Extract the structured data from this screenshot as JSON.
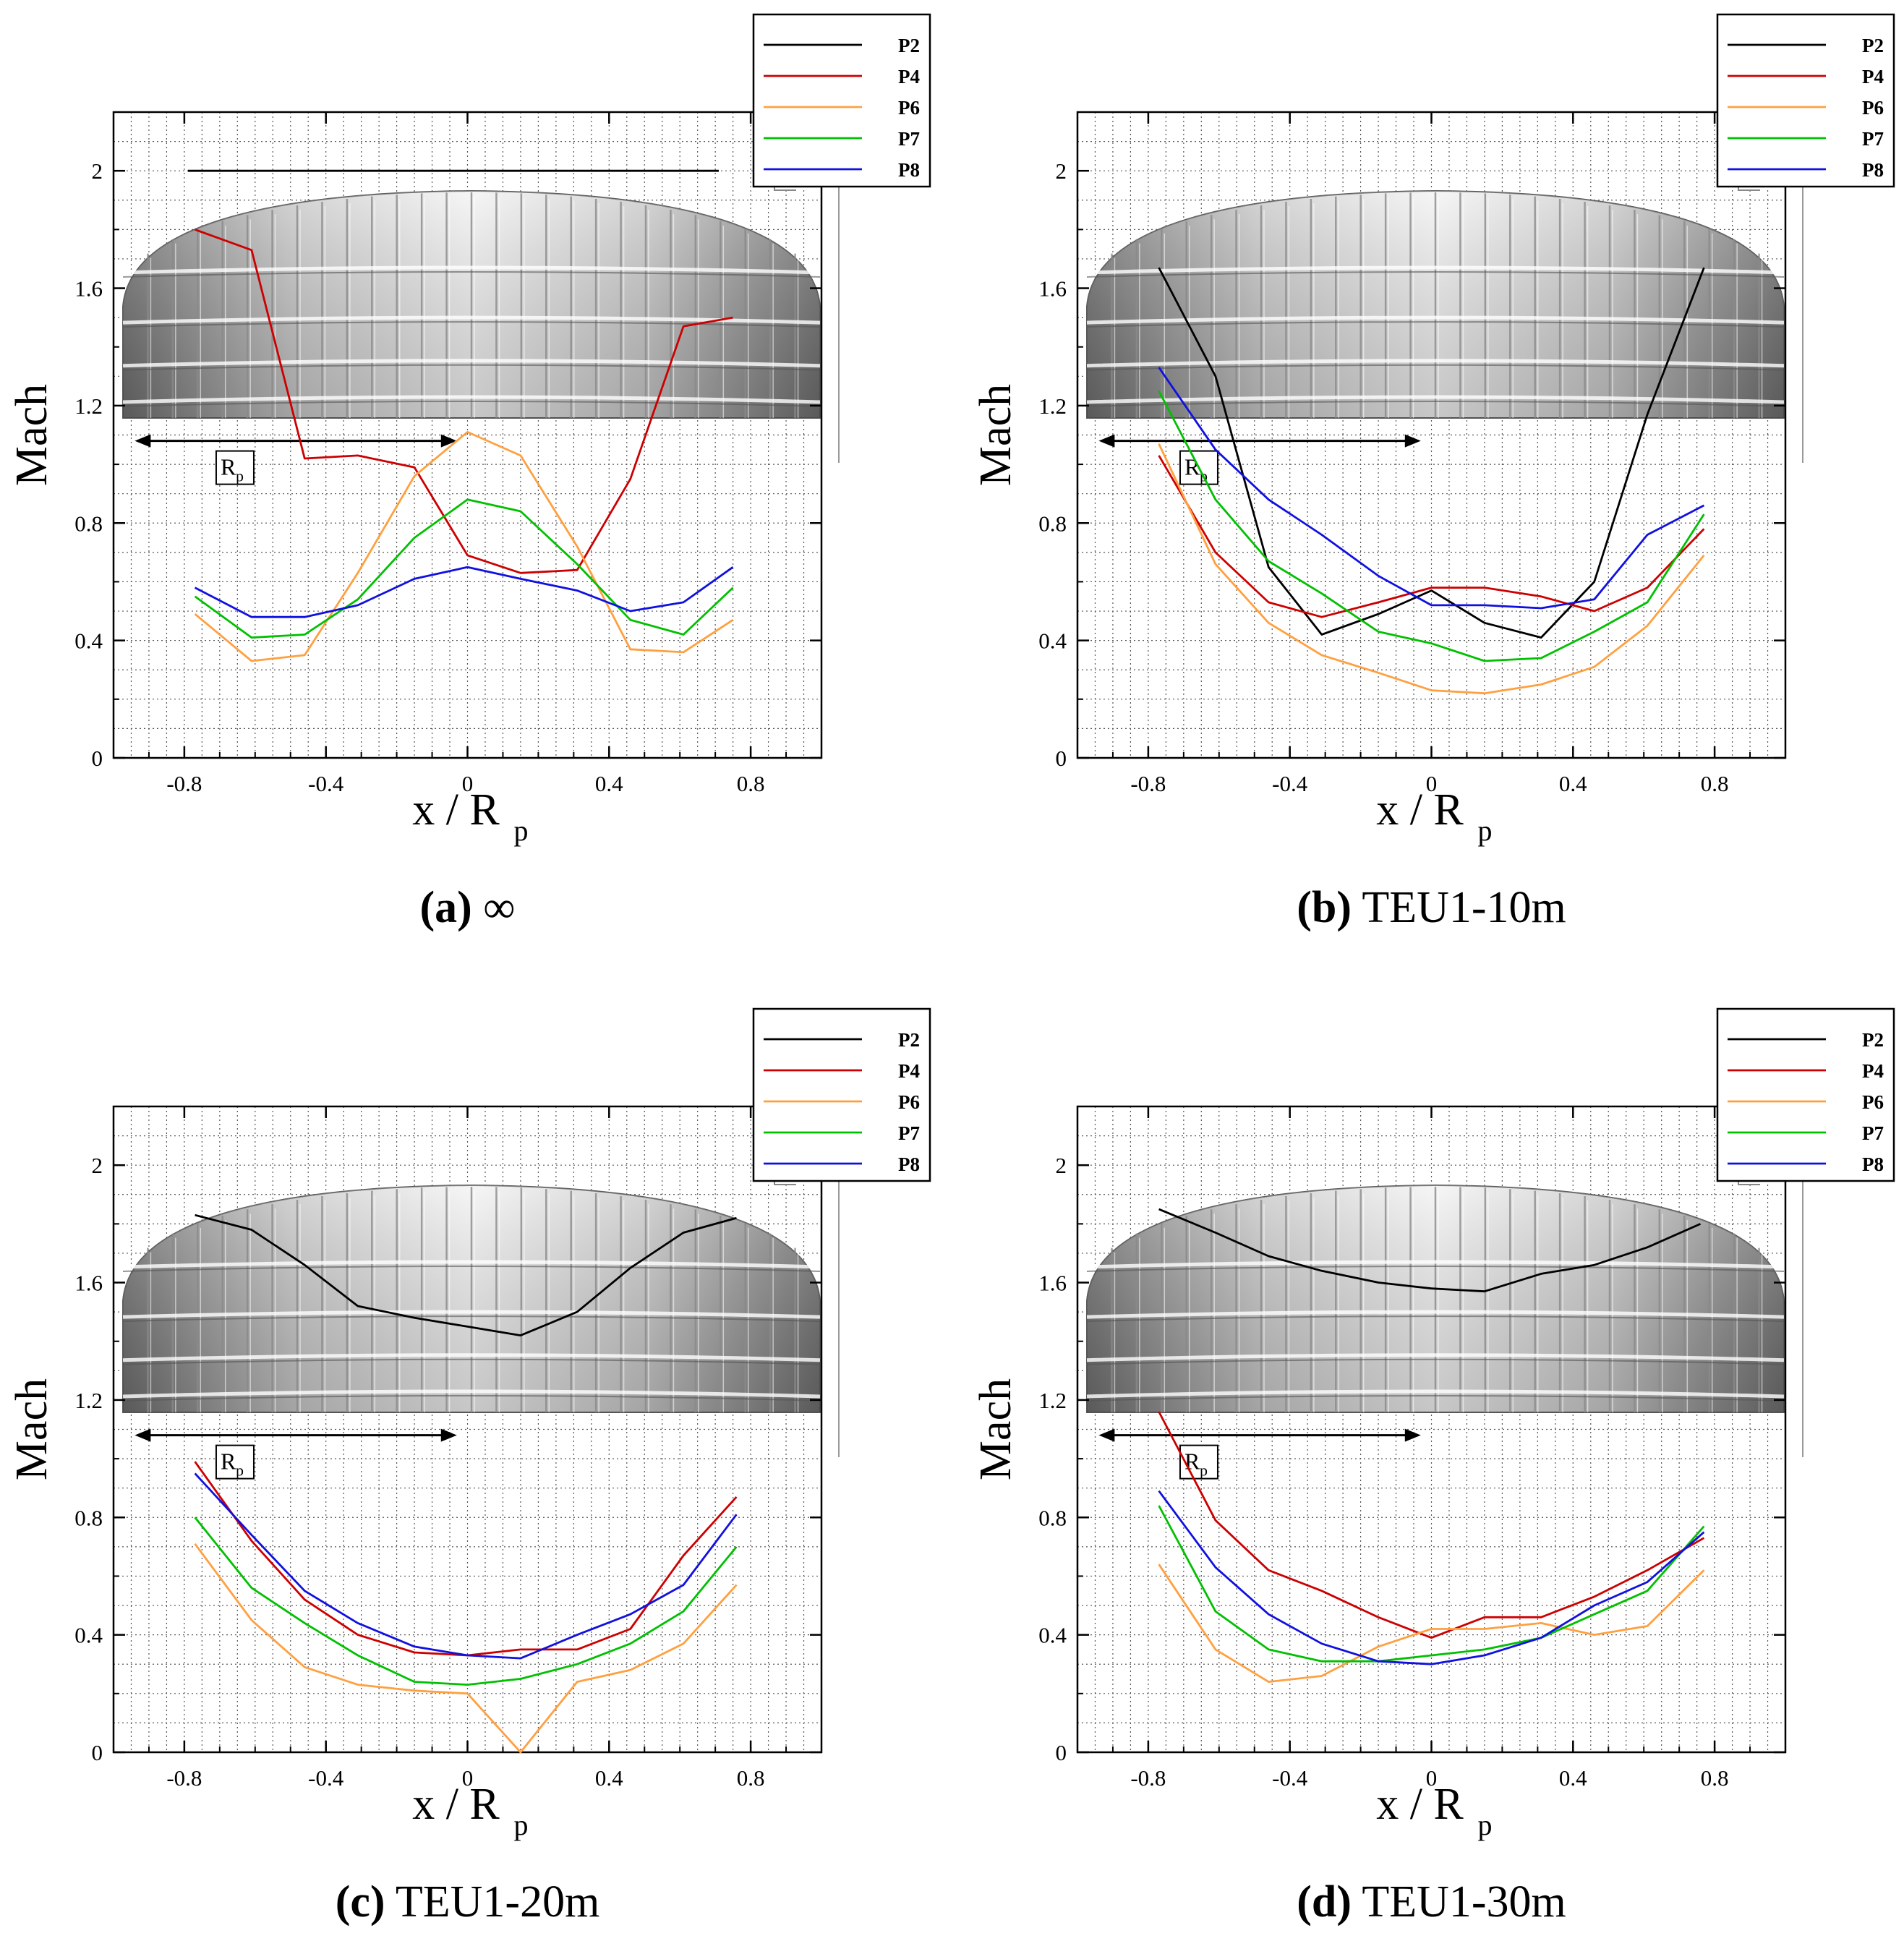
{
  "figure": {
    "panels": [
      {
        "letter": "(a)",
        "caption": "∞"
      },
      {
        "letter": "(b)",
        "caption": "TEU1-10m"
      },
      {
        "letter": "(c)",
        "caption": "TEU1-20m"
      },
      {
        "letter": "(d)",
        "caption": "TEU1-30m"
      }
    ],
    "scale_label": "R",
    "scale_label_sub": "p"
  },
  "colors": {
    "P2": "#000000",
    "P4": "#cc0000",
    "P6": "#ffa040",
    "P7": "#00c000",
    "P8": "#1010e0",
    "grid": "#555555",
    "canopy_light": "#f4f4f4",
    "canopy_dark": "#7a7a7a"
  },
  "chart_data": [
    {
      "type": "line",
      "title": "(a) ∞",
      "xlabel": "x / R",
      "xlabel_sub": "p",
      "ylabel": "Mach",
      "xlim": [
        -1.0,
        1.0
      ],
      "ylim": [
        0,
        2.2
      ],
      "xticks": [
        -0.8,
        -0.4,
        0,
        0.4,
        0.8
      ],
      "xtick_labels": [
        "-0.8",
        "-0.4",
        "0",
        "0.4",
        "0.8"
      ],
      "yticks": [
        0,
        0.4,
        0.8,
        1.2,
        1.6,
        2
      ],
      "ytick_labels": [
        "0",
        "0.4",
        "0.8",
        "1.2",
        "1.6",
        "2"
      ],
      "grid": true,
      "legend_position": "top-right",
      "series": [
        {
          "name": "P2",
          "x": [
            -0.79,
            0.71
          ],
          "y": [
            2.0,
            2.0
          ]
        },
        {
          "name": "P4",
          "x": [
            -0.77,
            -0.61,
            -0.46,
            -0.31,
            -0.15,
            0.0,
            0.15,
            0.31,
            0.46,
            0.61,
            0.75
          ],
          "y": [
            1.8,
            1.73,
            1.02,
            1.03,
            0.99,
            0.69,
            0.63,
            0.64,
            0.95,
            1.47,
            1.5
          ]
        },
        {
          "name": "P6",
          "x": [
            -0.77,
            -0.61,
            -0.46,
            -0.31,
            -0.15,
            0.0,
            0.15,
            0.31,
            0.46,
            0.61,
            0.75
          ],
          "y": [
            0.49,
            0.33,
            0.35,
            0.63,
            0.96,
            1.11,
            1.03,
            0.72,
            0.37,
            0.36,
            0.47
          ]
        },
        {
          "name": "P7",
          "x": [
            -0.77,
            -0.61,
            -0.46,
            -0.31,
            -0.15,
            0.0,
            0.15,
            0.31,
            0.46,
            0.61,
            0.75
          ],
          "y": [
            0.55,
            0.41,
            0.42,
            0.54,
            0.75,
            0.88,
            0.84,
            0.66,
            0.47,
            0.42,
            0.58
          ]
        },
        {
          "name": "P8",
          "x": [
            -0.77,
            -0.61,
            -0.46,
            -0.31,
            -0.15,
            0.0,
            0.15,
            0.31,
            0.46,
            0.61,
            0.75
          ],
          "y": [
            0.58,
            0.48,
            0.48,
            0.52,
            0.61,
            0.65,
            0.61,
            0.57,
            0.5,
            0.53,
            0.65
          ]
        }
      ]
    },
    {
      "type": "line",
      "title": "(b) TEU1-10m",
      "xlabel": "x / R",
      "xlabel_sub": "p",
      "ylabel": "Mach",
      "xlim": [
        -1.0,
        1.0
      ],
      "ylim": [
        0,
        2.2
      ],
      "xticks": [
        -0.8,
        -0.4,
        0,
        0.4,
        0.8
      ],
      "xtick_labels": [
        "-0.8",
        "-0.4",
        "0",
        "0.4",
        "0.8"
      ],
      "yticks": [
        0,
        0.4,
        0.8,
        1.2,
        1.6,
        2
      ],
      "ytick_labels": [
        "0",
        "0.4",
        "0.8",
        "1.2",
        "1.6",
        "2"
      ],
      "grid": true,
      "legend_position": "top-right",
      "series": [
        {
          "name": "P2",
          "x": [
            -0.77,
            -0.61,
            -0.46,
            -0.31,
            -0.15,
            0.0,
            0.15,
            0.31,
            0.46,
            0.61,
            0.77
          ],
          "y": [
            1.67,
            1.3,
            0.65,
            0.42,
            0.49,
            0.57,
            0.46,
            0.41,
            0.6,
            1.17,
            1.67
          ]
        },
        {
          "name": "P4",
          "x": [
            -0.77,
            -0.61,
            -0.46,
            -0.31,
            -0.15,
            0.0,
            0.15,
            0.31,
            0.46,
            0.61,
            0.77
          ],
          "y": [
            1.03,
            0.7,
            0.53,
            0.48,
            0.53,
            0.58,
            0.58,
            0.55,
            0.5,
            0.58,
            0.78
          ]
        },
        {
          "name": "P6",
          "x": [
            -0.77,
            -0.61,
            -0.46,
            -0.31,
            -0.15,
            0.0,
            0.15,
            0.31,
            0.46,
            0.61,
            0.77
          ],
          "y": [
            1.07,
            0.66,
            0.46,
            0.35,
            0.29,
            0.23,
            0.22,
            0.25,
            0.31,
            0.45,
            0.69
          ]
        },
        {
          "name": "P7",
          "x": [
            -0.77,
            -0.61,
            -0.46,
            -0.31,
            -0.15,
            0.0,
            0.15,
            0.31,
            0.46,
            0.61,
            0.77
          ],
          "y": [
            1.25,
            0.88,
            0.67,
            0.56,
            0.43,
            0.39,
            0.33,
            0.34,
            0.43,
            0.53,
            0.83
          ]
        },
        {
          "name": "P8",
          "x": [
            -0.77,
            -0.61,
            -0.46,
            -0.31,
            -0.15,
            0.0,
            0.15,
            0.31,
            0.46,
            0.61,
            0.77
          ],
          "y": [
            1.33,
            1.05,
            0.88,
            0.76,
            0.62,
            0.52,
            0.52,
            0.51,
            0.54,
            0.76,
            0.86
          ]
        }
      ]
    },
    {
      "type": "line",
      "title": "(c) TEU1-20m",
      "xlabel": "x / R",
      "xlabel_sub": "p",
      "ylabel": "Mach",
      "xlim": [
        -1.0,
        1.0
      ],
      "ylim": [
        0,
        2.2
      ],
      "xticks": [
        -0.8,
        -0.4,
        0,
        0.4,
        0.8
      ],
      "xtick_labels": [
        "-0.8",
        "-0.4",
        "0",
        "0.4",
        "0.8"
      ],
      "yticks": [
        0,
        0.4,
        0.8,
        1.2,
        1.6,
        2
      ],
      "ytick_labels": [
        "0",
        "0.4",
        "0.8",
        "1.2",
        "1.6",
        "2"
      ],
      "grid": true,
      "legend_position": "top-right",
      "series": [
        {
          "name": "P2",
          "x": [
            -0.77,
            -0.61,
            -0.46,
            -0.31,
            -0.15,
            0.0,
            0.15,
            0.31,
            0.46,
            0.61,
            0.76
          ],
          "y": [
            1.83,
            1.78,
            1.66,
            1.52,
            1.48,
            1.45,
            1.42,
            1.5,
            1.65,
            1.77,
            1.82
          ]
        },
        {
          "name": "P4",
          "x": [
            -0.77,
            -0.61,
            -0.46,
            -0.31,
            -0.15,
            0.0,
            0.15,
            0.31,
            0.46,
            0.61,
            0.76
          ],
          "y": [
            0.99,
            0.72,
            0.52,
            0.4,
            0.34,
            0.33,
            0.35,
            0.35,
            0.42,
            0.67,
            0.87
          ]
        },
        {
          "name": "P6",
          "x": [
            -0.77,
            -0.61,
            -0.46,
            -0.31,
            -0.15,
            0.0,
            0.15,
            0.31,
            0.46,
            0.61,
            0.76
          ],
          "y": [
            0.71,
            0.45,
            0.29,
            0.23,
            0.21,
            0.2,
            0.0,
            0.24,
            0.28,
            0.37,
            0.57
          ]
        },
        {
          "name": "P7",
          "x": [
            -0.77,
            -0.61,
            -0.46,
            -0.31,
            -0.15,
            0.0,
            0.15,
            0.31,
            0.46,
            0.61,
            0.76
          ],
          "y": [
            0.8,
            0.56,
            0.44,
            0.33,
            0.24,
            0.23,
            0.25,
            0.3,
            0.37,
            0.48,
            0.7
          ]
        },
        {
          "name": "P8",
          "x": [
            -0.77,
            -0.61,
            -0.46,
            -0.31,
            -0.15,
            0.0,
            0.15,
            0.31,
            0.46,
            0.61,
            0.76
          ],
          "y": [
            0.95,
            0.74,
            0.55,
            0.44,
            0.36,
            0.33,
            0.32,
            0.4,
            0.47,
            0.57,
            0.81
          ]
        }
      ]
    },
    {
      "type": "line",
      "title": "(d) TEU1-30m",
      "xlabel": "x / R",
      "xlabel_sub": "p",
      "ylabel": "Mach",
      "xlim": [
        -1.0,
        1.0
      ],
      "ylim": [
        0,
        2.2
      ],
      "xticks": [
        -0.8,
        -0.4,
        0,
        0.4,
        0.8
      ],
      "xtick_labels": [
        "-0.8",
        "-0.4",
        "0",
        "0.4",
        "0.8"
      ],
      "yticks": [
        0,
        0.4,
        0.8,
        1.2,
        1.6,
        2
      ],
      "ytick_labels": [
        "0",
        "0.4",
        "0.8",
        "1.2",
        "1.6",
        "2"
      ],
      "grid": true,
      "legend_position": "top-right",
      "series": [
        {
          "name": "P2",
          "x": [
            -0.77,
            -0.61,
            -0.46,
            -0.31,
            -0.15,
            0.0,
            0.15,
            0.31,
            0.46,
            0.61,
            0.76
          ],
          "y": [
            1.85,
            1.77,
            1.69,
            1.64,
            1.6,
            1.58,
            1.57,
            1.63,
            1.66,
            1.72,
            1.8
          ]
        },
        {
          "name": "P4",
          "x": [
            -0.77,
            -0.61,
            -0.46,
            -0.31,
            -0.15,
            0.0,
            0.15,
            0.31,
            0.46,
            0.61,
            0.77
          ],
          "y": [
            1.16,
            0.79,
            0.62,
            0.55,
            0.46,
            0.39,
            0.46,
            0.46,
            0.53,
            0.62,
            0.73
          ]
        },
        {
          "name": "P6",
          "x": [
            -0.77,
            -0.61,
            -0.46,
            -0.31,
            -0.15,
            0.0,
            0.15,
            0.31,
            0.46,
            0.61,
            0.77
          ],
          "y": [
            0.64,
            0.35,
            0.24,
            0.26,
            0.36,
            0.42,
            0.42,
            0.44,
            0.4,
            0.43,
            0.62
          ]
        },
        {
          "name": "P7",
          "x": [
            -0.77,
            -0.61,
            -0.46,
            -0.31,
            -0.15,
            0.0,
            0.15,
            0.31,
            0.46,
            0.61,
            0.77
          ],
          "y": [
            0.84,
            0.48,
            0.35,
            0.31,
            0.31,
            0.33,
            0.35,
            0.39,
            0.47,
            0.55,
            0.77
          ]
        },
        {
          "name": "P8",
          "x": [
            -0.77,
            -0.61,
            -0.46,
            -0.31,
            -0.15,
            0.0,
            0.15,
            0.31,
            0.46,
            0.61,
            0.77
          ],
          "y": [
            0.89,
            0.63,
            0.47,
            0.37,
            0.31,
            0.3,
            0.33,
            0.39,
            0.5,
            0.58,
            0.75
          ]
        }
      ]
    }
  ]
}
